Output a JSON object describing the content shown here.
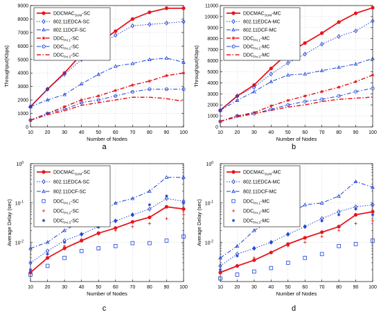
{
  "colors": {
    "red": "#e8141b",
    "blue": "#1a3fd8",
    "axis": "#000000",
    "grid": "#bbbbbb"
  },
  "chart_data": [
    {
      "type": "line",
      "caption": "a",
      "xlabel": "Number of Nodes",
      "ylabel": "Throughput(Kbps)",
      "xlim": [
        10,
        100
      ],
      "ylim": [
        0,
        9000
      ],
      "xticks": [
        10,
        20,
        30,
        40,
        50,
        60,
        70,
        80,
        90,
        100
      ],
      "yticks": [
        0,
        1000,
        2000,
        3000,
        4000,
        5000,
        6000,
        7000,
        8000,
        9000
      ],
      "log": false,
      "grid": true,
      "legend_position": "top-left",
      "x": [
        10,
        20,
        30,
        40,
        50,
        60,
        70,
        80,
        90,
        100
      ],
      "series": [
        {
          "name": "DDCMAC",
          "sub": "SUM",
          "suffix": "-SC",
          "color": "red",
          "style": "solid",
          "marker": "circle",
          "width": 1.8,
          "values": [
            1500,
            2800,
            4000,
            5400,
            6200,
            7100,
            8000,
            8500,
            8800,
            8800
          ]
        },
        {
          "name": "802.11EDCA-SC",
          "color": "blue",
          "style": "dotted",
          "marker": "diamond",
          "width": 1,
          "values": [
            1500,
            2800,
            3900,
            5000,
            6000,
            6800,
            7500,
            7600,
            7700,
            7800
          ]
        },
        {
          "name": "802.11DCF-SC",
          "color": "blue",
          "style": "dashdot",
          "marker": "triangle",
          "width": 1,
          "values": [
            1500,
            2000,
            2400,
            3200,
            3900,
            4500,
            4700,
            5000,
            5100,
            4800
          ]
        },
        {
          "name": "DDC",
          "sub": "Pri.1",
          "suffix": "-SC",
          "color": "red",
          "style": "dashdot",
          "marker": "star",
          "width": 1.5,
          "values": [
            500,
            1000,
            1500,
            2000,
            2300,
            2700,
            3100,
            3400,
            3800,
            4000
          ]
        },
        {
          "name": "DDC",
          "sub": "Pri.2",
          "suffix": "-SC",
          "color": "blue",
          "style": "dashdot",
          "marker": "circle",
          "width": 1,
          "values": [
            500,
            1000,
            1300,
            1800,
            2000,
            2300,
            2600,
            2800,
            2800,
            2800
          ]
        },
        {
          "name": "DDC",
          "sub": "Pri.3",
          "suffix": "-SC",
          "color": "red",
          "style": "dashdot",
          "marker": "none",
          "width": 1.5,
          "values": [
            500,
            900,
            1200,
            1600,
            1800,
            2000,
            2200,
            2200,
            2100,
            1900
          ]
        }
      ]
    },
    {
      "type": "line",
      "caption": "b",
      "xlabel": "Number of Nodes",
      "ylabel": "Throughput(Kbps)",
      "xlim": [
        10,
        100
      ],
      "ylim": [
        0,
        11000
      ],
      "xticks": [
        10,
        20,
        30,
        40,
        50,
        60,
        70,
        80,
        90,
        100
      ],
      "yticks": [
        0,
        1000,
        2000,
        3000,
        4000,
        5000,
        6000,
        7000,
        8000,
        9000,
        10000,
        11000
      ],
      "log": false,
      "grid": true,
      "legend_position": "top-left",
      "x": [
        10,
        20,
        30,
        40,
        50,
        60,
        70,
        80,
        90,
        100
      ],
      "series": [
        {
          "name": "DDCMAC",
          "sub": "SUM",
          "suffix": "-MC",
          "color": "red",
          "style": "solid",
          "marker": "circle",
          "width": 1.8,
          "values": [
            1500,
            2800,
            3800,
            5300,
            6700,
            7600,
            8500,
            9500,
            10300,
            10800
          ]
        },
        {
          "name": "802.11EDCA-MC",
          "color": "blue",
          "style": "dotted",
          "marker": "diamond",
          "width": 1,
          "values": [
            1500,
            2800,
            3600,
            4800,
            5800,
            6600,
            7500,
            8200,
            8700,
            9600
          ]
        },
        {
          "name": "802.11DCF-MC",
          "color": "blue",
          "style": "dashdot",
          "marker": "triangle",
          "width": 1,
          "values": [
            1500,
            2400,
            3200,
            4100,
            4700,
            4800,
            5100,
            5400,
            5700,
            6200
          ]
        },
        {
          "name": "DDC",
          "sub": "Pri.1",
          "suffix": "-MC",
          "color": "red",
          "style": "dashdot",
          "marker": "star",
          "width": 1.5,
          "values": [
            500,
            1000,
            1300,
            1900,
            2400,
            2800,
            3200,
            3600,
            4100,
            4700
          ]
        },
        {
          "name": "DDC",
          "sub": "Pri.2",
          "suffix": "-MC",
          "color": "blue",
          "style": "dashdot",
          "marker": "circle",
          "width": 1,
          "values": [
            500,
            1000,
            1200,
            1600,
            2000,
            2300,
            2500,
            2800,
            3200,
            3500
          ]
        },
        {
          "name": "DDC",
          "sub": "Pri.3",
          "suffix": "-MC",
          "color": "red",
          "style": "dashdot",
          "marker": "none",
          "width": 1.5,
          "values": [
            500,
            900,
            1200,
            1500,
            1800,
            2000,
            2300,
            2500,
            2600,
            2700
          ]
        }
      ]
    },
    {
      "type": "line",
      "caption": "c",
      "xlabel": "Number of Nodes",
      "ylabel": "Average Delay (sec)",
      "xlim": [
        10,
        100
      ],
      "ylim": [
        0.001,
        1
      ],
      "xticks": [
        10,
        20,
        30,
        40,
        50,
        60,
        70,
        80,
        90,
        100
      ],
      "yticks": [
        0.01,
        0.1,
        1
      ],
      "ytick_labels": [
        "10",
        "10",
        "10"
      ],
      "ytick_exponents": [
        "-2",
        "-1",
        "0"
      ],
      "log": true,
      "grid": true,
      "legend_position": "top-left",
      "x": [
        10,
        20,
        30,
        40,
        50,
        60,
        70,
        80,
        90,
        100
      ],
      "series": [
        {
          "name": "DDCMAC",
          "sub": "SUM",
          "suffix": "-SC",
          "color": "red",
          "style": "solid",
          "marker": "circle",
          "width": 1.8,
          "values": [
            0.0017,
            0.004,
            0.007,
            0.011,
            0.017,
            0.023,
            0.033,
            0.043,
            0.08,
            0.07
          ]
        },
        {
          "name": "802.11EDCA-SC",
          "color": "blue",
          "style": "dotted",
          "marker": "diamond",
          "width": 1,
          "values": [
            0.003,
            0.006,
            0.011,
            0.016,
            0.025,
            0.035,
            0.05,
            0.07,
            0.13,
            0.11
          ]
        },
        {
          "name": "802.11DCF-SC",
          "color": "blue",
          "style": "dashdot",
          "marker": "triangle",
          "width": 1,
          "values": [
            0.007,
            0.01,
            0.02,
            0.035,
            0.05,
            0.1,
            0.13,
            0.2,
            0.45,
            0.45
          ]
        },
        {
          "name": "DDC",
          "sub": "Pri.1",
          "suffix": "-SC",
          "color": "blue",
          "style": "none",
          "marker": "square",
          "values": [
            0.0015,
            0.0025,
            0.004,
            0.006,
            0.007,
            0.008,
            0.0095,
            0.0095,
            0.011,
            0.014
          ]
        },
        {
          "name": "DDC",
          "sub": "Pri.2",
          "suffix": "-SC",
          "color": "red",
          "style": "none",
          "marker": "plus",
          "values": [
            0.002,
            0.004,
            0.008,
            0.012,
            0.016,
            0.02,
            0.025,
            0.03,
            0.04,
            0.05
          ]
        },
        {
          "name": "DDC",
          "sub": "Pri.3",
          "suffix": "-SC",
          "color": "blue",
          "style": "none",
          "marker": "star",
          "values": [
            0.002,
            0.005,
            0.01,
            0.016,
            0.025,
            0.035,
            0.05,
            0.09,
            0.15,
            0.1
          ]
        }
      ]
    },
    {
      "type": "line",
      "caption": "d",
      "xlabel": "Number of Nodes",
      "ylabel": "Average Delay (sec)",
      "xlim": [
        10,
        100
      ],
      "ylim": [
        0.001,
        1
      ],
      "xticks": [
        10,
        20,
        30,
        40,
        50,
        60,
        70,
        80,
        90,
        100
      ],
      "yticks": [
        0.01,
        0.1,
        1
      ],
      "ytick_labels": [
        "10",
        "10",
        "10"
      ],
      "ytick_exponents": [
        "-2",
        "-1",
        "0"
      ],
      "log": true,
      "grid": true,
      "legend_position": "top-left",
      "x": [
        10,
        20,
        30,
        40,
        50,
        60,
        70,
        80,
        90,
        100
      ],
      "series": [
        {
          "name": "DDCMAC",
          "sub": "SUM",
          "suffix": "-MC",
          "color": "red",
          "style": "solid",
          "marker": "circle",
          "width": 1.8,
          "values": [
            0.0017,
            0.0025,
            0.0035,
            0.0055,
            0.009,
            0.013,
            0.018,
            0.025,
            0.05,
            0.06
          ]
        },
        {
          "name": "802.11EDCA-MC",
          "color": "blue",
          "style": "dotted",
          "marker": "diamond",
          "width": 1,
          "values": [
            0.0025,
            0.005,
            0.007,
            0.01,
            0.016,
            0.025,
            0.04,
            0.06,
            0.08,
            0.09
          ]
        },
        {
          "name": "802.11DCF-MC",
          "color": "blue",
          "style": "dashdot",
          "marker": "triangle",
          "width": 1,
          "values": [
            0.004,
            0.008,
            0.02,
            0.035,
            0.05,
            0.09,
            0.1,
            0.15,
            0.35,
            0.25
          ]
        },
        {
          "name": "DDC",
          "sub": "Pri.1",
          "suffix": "-MC",
          "color": "blue",
          "style": "none",
          "marker": "square",
          "values": [
            0.0012,
            0.0015,
            0.0018,
            0.0022,
            0.003,
            0.004,
            0.005,
            0.008,
            0.009,
            0.011
          ]
        },
        {
          "name": "DDC",
          "sub": "Pri.2",
          "suffix": "-MC",
          "color": "red",
          "style": "none",
          "marker": "plus",
          "values": [
            0.0016,
            0.0025,
            0.004,
            0.0055,
            0.008,
            0.01,
            0.014,
            0.02,
            0.03,
            0.035
          ]
        },
        {
          "name": "DDC",
          "sub": "Pri.3",
          "suffix": "-MC",
          "color": "blue",
          "style": "none",
          "marker": "star",
          "values": [
            0.002,
            0.0045,
            0.007,
            0.01,
            0.016,
            0.025,
            0.035,
            0.05,
            0.07,
            0.05
          ]
        }
      ]
    }
  ]
}
